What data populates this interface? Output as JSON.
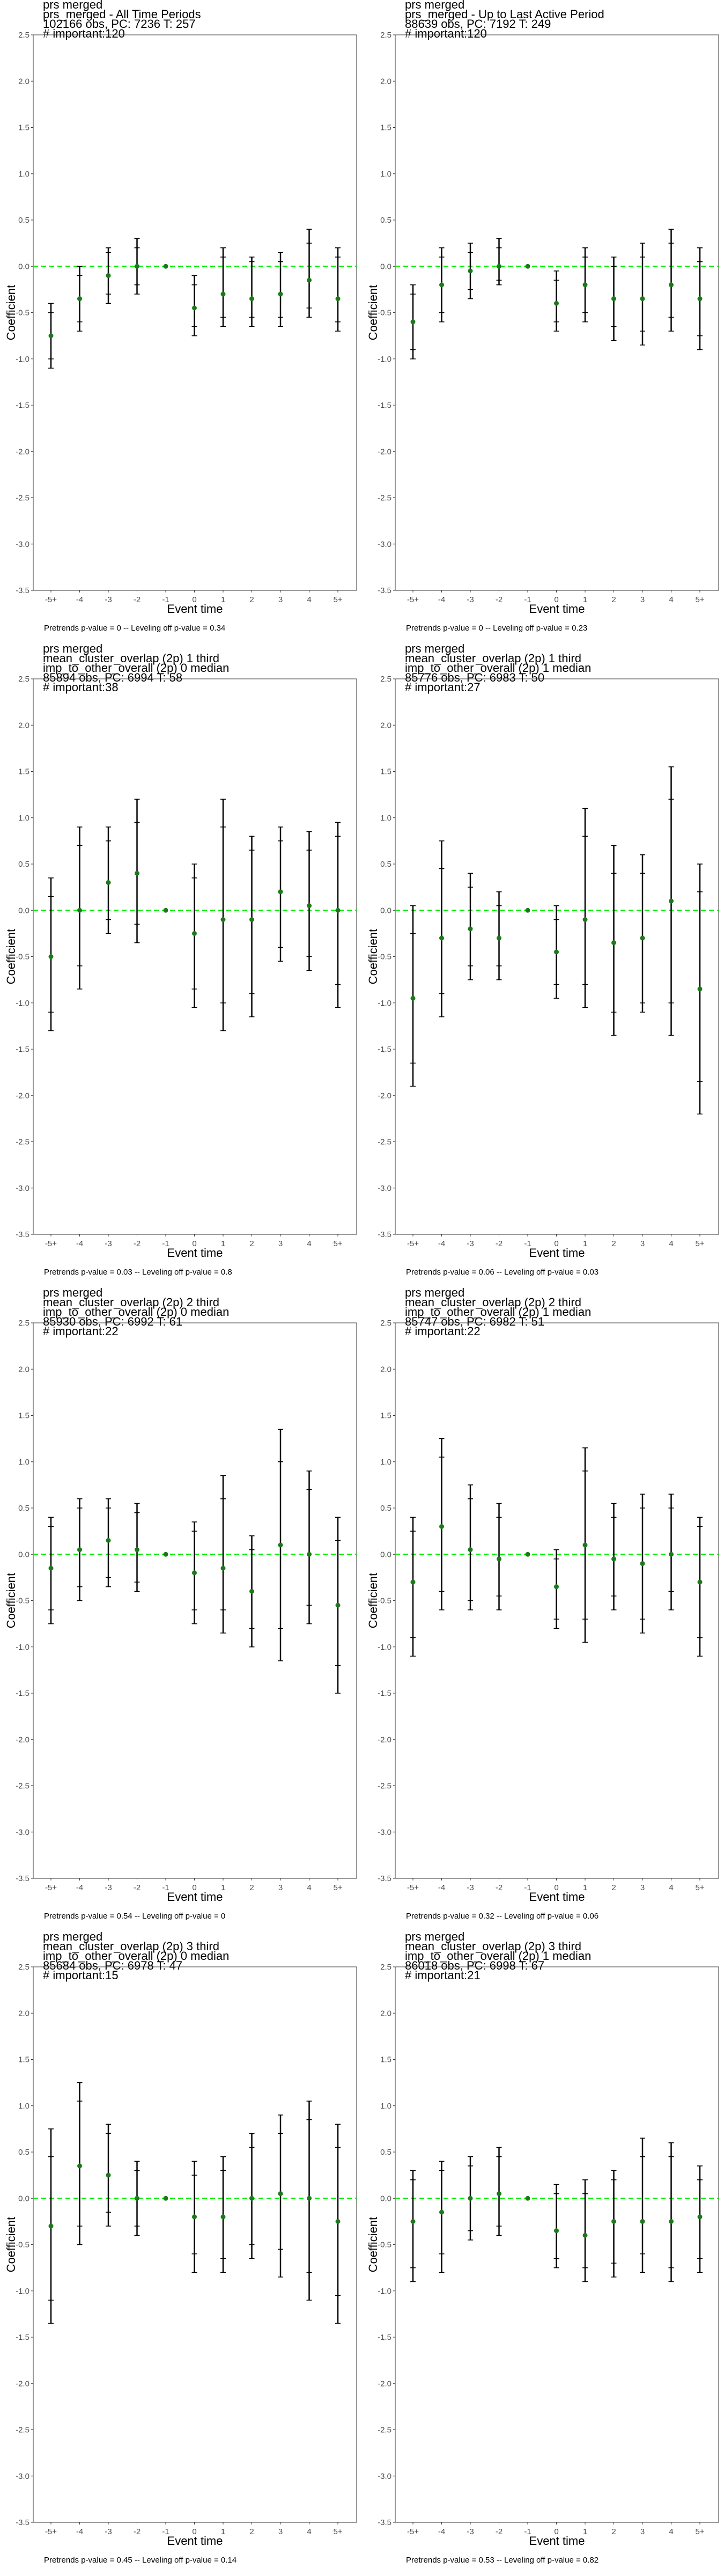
{
  "colors": {
    "point": "#1a7a1a",
    "zero_line": "#00ee00",
    "error_bar": "#000000",
    "frame": "#333333",
    "tick_text": "#4d4d4d"
  },
  "chart_data": [
    {
      "type": "scatter",
      "title_lines": [
        "prs merged",
        "prs_merged - All Time Periods",
        "102166 obs, PC: 7236 T: 257",
        "# important:120"
      ],
      "footnote": "Pretrends p-value = 0 -- Leveling off p-value = 0.34",
      "xlabel": "Event time",
      "ylabel": "Coefficient",
      "categories": [
        "-5+",
        "-4",
        "-3",
        "-2",
        "-1",
        "0",
        "1",
        "2",
        "3",
        "4",
        "5+"
      ],
      "ylim": [
        -3.5,
        2.5
      ],
      "yticks": [
        -3.5,
        -3.0,
        -2.5,
        -2.0,
        -1.5,
        -1.0,
        -0.5,
        0.0,
        0.5,
        1.0,
        1.5,
        2.0,
        2.5
      ],
      "y": [
        -0.75,
        -0.35,
        -0.1,
        0.0,
        0.0,
        -0.45,
        -0.3,
        -0.35,
        -0.3,
        -0.15,
        -0.35
      ],
      "ci95": [
        [
          -1.1,
          -0.4
        ],
        [
          -0.7,
          0.0
        ],
        [
          -0.4,
          0.2
        ],
        [
          -0.3,
          0.3
        ],
        [
          0.0,
          0.0
        ],
        [
          -0.75,
          -0.1
        ],
        [
          -0.65,
          0.2
        ],
        [
          -0.65,
          0.1
        ],
        [
          -0.65,
          0.15
        ],
        [
          -0.55,
          0.4
        ],
        [
          -0.7,
          0.2
        ]
      ],
      "ci90": [
        [
          -1.0,
          -0.5
        ],
        [
          -0.6,
          -0.1
        ],
        [
          -0.3,
          0.15
        ],
        [
          -0.2,
          0.2
        ],
        [
          0.0,
          0.0
        ],
        [
          -0.65,
          -0.2
        ],
        [
          -0.55,
          0.1
        ],
        [
          -0.55,
          0.05
        ],
        [
          -0.55,
          0.05
        ],
        [
          -0.45,
          0.25
        ],
        [
          -0.6,
          0.1
        ]
      ],
      "grid": false
    },
    {
      "type": "scatter",
      "title_lines": [
        "prs merged",
        "prs_merged - Up to Last Active Period",
        "88639 obs, PC: 7192 T: 249",
        "# important:120"
      ],
      "footnote": "Pretrends p-value = 0 -- Leveling off p-value = 0.23",
      "xlabel": "Event time",
      "ylabel": "Coefficient",
      "categories": [
        "-5+",
        "-4",
        "-3",
        "-2",
        "-1",
        "0",
        "1",
        "2",
        "3",
        "4",
        "5+"
      ],
      "ylim": [
        -3.5,
        2.5
      ],
      "yticks": [
        -3.5,
        -3.0,
        -2.5,
        -2.0,
        -1.5,
        -1.0,
        -0.5,
        0.0,
        0.5,
        1.0,
        1.5,
        2.0,
        2.5
      ],
      "y": [
        -0.6,
        -0.2,
        -0.05,
        0.0,
        0.0,
        -0.4,
        -0.2,
        -0.35,
        -0.35,
        -0.2,
        -0.35
      ],
      "ci95": [
        [
          -1.0,
          -0.2
        ],
        [
          -0.6,
          0.2
        ],
        [
          -0.35,
          0.25
        ],
        [
          -0.2,
          0.3
        ],
        [
          0.0,
          0.0
        ],
        [
          -0.7,
          -0.05
        ],
        [
          -0.6,
          0.2
        ],
        [
          -0.8,
          0.1
        ],
        [
          -0.85,
          0.25
        ],
        [
          -0.7,
          0.4
        ],
        [
          -0.9,
          0.2
        ]
      ],
      "ci90": [
        [
          -0.9,
          -0.3
        ],
        [
          -0.5,
          0.1
        ],
        [
          -0.25,
          0.15
        ],
        [
          -0.15,
          0.2
        ],
        [
          0.0,
          0.0
        ],
        [
          -0.6,
          -0.15
        ],
        [
          -0.5,
          0.1
        ],
        [
          -0.65,
          0.0
        ],
        [
          -0.7,
          0.1
        ],
        [
          -0.55,
          0.25
        ],
        [
          -0.75,
          0.05
        ]
      ],
      "grid": false
    },
    {
      "type": "scatter",
      "title_lines": [
        "prs merged",
        "mean_cluster_overlap (2p) 1 third",
        "imp_to_other_overall (2p) 0 median",
        "85894 obs, PC: 6994 T: 58",
        "# important:38"
      ],
      "footnote": "Pretrends p-value = 0.03 -- Leveling off p-value = 0.8",
      "xlabel": "Event time",
      "ylabel": "Coefficient",
      "categories": [
        "-5+",
        "-4",
        "-3",
        "-2",
        "-1",
        "0",
        "1",
        "2",
        "3",
        "4",
        "5+"
      ],
      "ylim": [
        -3.5,
        2.5
      ],
      "yticks": [
        -3.5,
        -3.0,
        -2.5,
        -2.0,
        -1.5,
        -1.0,
        -0.5,
        0.0,
        0.5,
        1.0,
        1.5,
        2.0,
        2.5
      ],
      "y": [
        -0.5,
        0.0,
        0.3,
        0.4,
        0.0,
        -0.25,
        -0.1,
        -0.1,
        0.2,
        0.05,
        0.0
      ],
      "ci95": [
        [
          -1.3,
          0.35
        ],
        [
          -0.85,
          0.9
        ],
        [
          -0.25,
          0.9
        ],
        [
          -0.35,
          1.2
        ],
        [
          0.0,
          0.0
        ],
        [
          -1.05,
          0.5
        ],
        [
          -1.3,
          1.2
        ],
        [
          -1.15,
          0.8
        ],
        [
          -0.55,
          0.9
        ],
        [
          -0.65,
          0.85
        ],
        [
          -1.05,
          0.95
        ]
      ],
      "ci90": [
        [
          -1.1,
          0.15
        ],
        [
          -0.6,
          0.7
        ],
        [
          -0.1,
          0.75
        ],
        [
          -0.15,
          0.95
        ],
        [
          0.0,
          0.0
        ],
        [
          -0.85,
          0.35
        ],
        [
          -1.0,
          0.9
        ],
        [
          -0.9,
          0.65
        ],
        [
          -0.4,
          0.75
        ],
        [
          -0.5,
          0.65
        ],
        [
          -0.8,
          0.8
        ]
      ],
      "grid": false
    },
    {
      "type": "scatter",
      "title_lines": [
        "prs merged",
        "mean_cluster_overlap (2p) 1 third",
        "imp_to_other_overall (2p) 1 median",
        "85776 obs, PC: 6983 T: 50",
        "# important:27"
      ],
      "footnote": "Pretrends p-value = 0.06 -- Leveling off p-value = 0.03",
      "xlabel": "Event time",
      "ylabel": "Coefficient",
      "categories": [
        "-5+",
        "-4",
        "-3",
        "-2",
        "-1",
        "0",
        "1",
        "2",
        "3",
        "4",
        "5+"
      ],
      "ylim": [
        -3.5,
        2.5
      ],
      "yticks": [
        -3.5,
        -3.0,
        -2.5,
        -2.0,
        -1.5,
        -1.0,
        -0.5,
        0.0,
        0.5,
        1.0,
        1.5,
        2.0,
        2.5
      ],
      "y": [
        -0.95,
        -0.3,
        -0.2,
        -0.3,
        0.0,
        -0.45,
        -0.1,
        -0.35,
        -0.3,
        0.1,
        -0.85
      ],
      "ci95": [
        [
          -1.9,
          0.05
        ],
        [
          -1.15,
          0.75
        ],
        [
          -0.75,
          0.4
        ],
        [
          -0.75,
          0.2
        ],
        [
          0.0,
          0.0
        ],
        [
          -0.95,
          0.05
        ],
        [
          -1.05,
          1.1
        ],
        [
          -1.35,
          0.7
        ],
        [
          -1.1,
          0.6
        ],
        [
          -1.35,
          1.55
        ],
        [
          -2.2,
          0.5
        ]
      ],
      "ci90": [
        [
          -1.65,
          -0.25
        ],
        [
          -0.9,
          0.45
        ],
        [
          -0.6,
          0.25
        ],
        [
          -0.6,
          0.05
        ],
        [
          0.0,
          0.0
        ],
        [
          -0.8,
          -0.1
        ],
        [
          -0.8,
          0.8
        ],
        [
          -1.1,
          0.4
        ],
        [
          -1.0,
          0.4
        ],
        [
          -1.0,
          1.2
        ],
        [
          -1.85,
          0.2
        ]
      ],
      "grid": false
    },
    {
      "type": "scatter",
      "title_lines": [
        "prs merged",
        "mean_cluster_overlap (2p) 2 third",
        "imp_to_other_overall (2p) 0 median",
        "85930 obs, PC: 6992 T: 61",
        "# important:22"
      ],
      "footnote": "Pretrends p-value = 0.54 -- Leveling off p-value = 0",
      "xlabel": "Event time",
      "ylabel": "Coefficient",
      "categories": [
        "-5+",
        "-4",
        "-3",
        "-2",
        "-1",
        "0",
        "1",
        "2",
        "3",
        "4",
        "5+"
      ],
      "ylim": [
        -3.5,
        2.5
      ],
      "yticks": [
        -3.5,
        -3.0,
        -2.5,
        -2.0,
        -1.5,
        -1.0,
        -0.5,
        0.0,
        0.5,
        1.0,
        1.5,
        2.0,
        2.5
      ],
      "y": [
        -0.15,
        0.05,
        0.15,
        0.05,
        0.0,
        -0.2,
        -0.15,
        -0.4,
        0.1,
        0.0,
        -0.55
      ],
      "ci95": [
        [
          -0.75,
          0.4
        ],
        [
          -0.5,
          0.6
        ],
        [
          -0.35,
          0.6
        ],
        [
          -0.4,
          0.55
        ],
        [
          0.0,
          0.0
        ],
        [
          -0.75,
          0.35
        ],
        [
          -0.85,
          0.85
        ],
        [
          -1.0,
          0.2
        ],
        [
          -1.15,
          1.35
        ],
        [
          -0.75,
          0.9
        ],
        [
          -1.5,
          0.4
        ]
      ],
      "ci90": [
        [
          -0.6,
          0.3
        ],
        [
          -0.35,
          0.5
        ],
        [
          -0.25,
          0.5
        ],
        [
          -0.3,
          0.45
        ],
        [
          0.0,
          0.0
        ],
        [
          -0.6,
          0.25
        ],
        [
          -0.6,
          0.6
        ],
        [
          -0.8,
          0.05
        ],
        [
          -0.8,
          1.0
        ],
        [
          -0.55,
          0.7
        ],
        [
          -1.2,
          0.15
        ]
      ],
      "grid": false
    },
    {
      "type": "scatter",
      "title_lines": [
        "prs merged",
        "mean_cluster_overlap (2p) 2 third",
        "imp_to_other_overall (2p) 1 median",
        "85747 obs, PC: 6982 T: 51",
        "# important:22"
      ],
      "footnote": "Pretrends p-value = 0.32 -- Leveling off p-value = 0.06",
      "xlabel": "Event time",
      "ylabel": "Coefficient",
      "categories": [
        "-5+",
        "-4",
        "-3",
        "-2",
        "-1",
        "0",
        "1",
        "2",
        "3",
        "4",
        "5+"
      ],
      "ylim": [
        -3.5,
        2.5
      ],
      "yticks": [
        -3.5,
        -3.0,
        -2.5,
        -2.0,
        -1.5,
        -1.0,
        -0.5,
        0.0,
        0.5,
        1.0,
        1.5,
        2.0,
        2.5
      ],
      "y": [
        -0.3,
        0.3,
        0.05,
        -0.05,
        0.0,
        -0.35,
        0.1,
        -0.05,
        -0.1,
        0.0,
        -0.3
      ],
      "ci95": [
        [
          -1.1,
          0.4
        ],
        [
          -0.6,
          1.25
        ],
        [
          -0.6,
          0.75
        ],
        [
          -0.6,
          0.55
        ],
        [
          0.0,
          0.0
        ],
        [
          -0.8,
          0.05
        ],
        [
          -0.95,
          1.15
        ],
        [
          -0.6,
          0.55
        ],
        [
          -0.85,
          0.65
        ],
        [
          -0.6,
          0.65
        ],
        [
          -1.1,
          0.4
        ]
      ],
      "ci90": [
        [
          -0.9,
          0.25
        ],
        [
          -0.4,
          1.05
        ],
        [
          -0.5,
          0.6
        ],
        [
          -0.45,
          0.4
        ],
        [
          0.0,
          0.0
        ],
        [
          -0.7,
          -0.05
        ],
        [
          -0.7,
          0.9
        ],
        [
          -0.45,
          0.4
        ],
        [
          -0.7,
          0.5
        ],
        [
          -0.4,
          0.5
        ],
        [
          -0.9,
          0.3
        ]
      ],
      "grid": false
    },
    {
      "type": "scatter",
      "title_lines": [
        "prs merged",
        "mean_cluster_overlap (2p) 3 third",
        "imp_to_other_overall (2p) 0 median",
        "85684 obs, PC: 6978 T: 47",
        "# important:15"
      ],
      "footnote": "Pretrends p-value = 0.45 -- Leveling off p-value = 0.14",
      "xlabel": "Event time",
      "ylabel": "Coefficient",
      "categories": [
        "-5+",
        "-4",
        "-3",
        "-2",
        "-1",
        "0",
        "1",
        "2",
        "3",
        "4",
        "5+"
      ],
      "ylim": [
        -3.5,
        2.5
      ],
      "yticks": [
        -3.5,
        -3.0,
        -2.5,
        -2.0,
        -1.5,
        -1.0,
        -0.5,
        0.0,
        0.5,
        1.0,
        1.5,
        2.0,
        2.5
      ],
      "y": [
        -0.3,
        0.35,
        0.25,
        0.0,
        0.0,
        -0.2,
        -0.2,
        0.0,
        0.05,
        0.0,
        -0.25
      ],
      "ci95": [
        [
          -1.35,
          0.75
        ],
        [
          -0.5,
          1.25
        ],
        [
          -0.3,
          0.8
        ],
        [
          -0.4,
          0.4
        ],
        [
          0.0,
          0.0
        ],
        [
          -0.8,
          0.4
        ],
        [
          -0.8,
          0.45
        ],
        [
          -0.65,
          0.7
        ],
        [
          -0.85,
          0.9
        ],
        [
          -1.1,
          1.05
        ],
        [
          -1.35,
          0.8
        ]
      ],
      "ci90": [
        [
          -1.1,
          0.45
        ],
        [
          -0.3,
          1.05
        ],
        [
          -0.15,
          0.7
        ],
        [
          -0.3,
          0.3
        ],
        [
          0.0,
          0.0
        ],
        [
          -0.6,
          0.25
        ],
        [
          -0.65,
          0.3
        ],
        [
          -0.5,
          0.55
        ],
        [
          -0.55,
          0.7
        ],
        [
          -0.8,
          0.85
        ],
        [
          -1.05,
          0.55
        ]
      ],
      "grid": false
    },
    {
      "type": "scatter",
      "title_lines": [
        "prs merged",
        "mean_cluster_overlap (2p) 3 third",
        "imp_to_other_overall (2p) 1 median",
        "86018 obs, PC: 6998 T: 67",
        "# important:21"
      ],
      "footnote": "Pretrends p-value = 0.53 -- Leveling off p-value = 0.82",
      "xlabel": "Event time",
      "ylabel": "Coefficient",
      "categories": [
        "-5+",
        "-4",
        "-3",
        "-2",
        "-1",
        "0",
        "1",
        "2",
        "3",
        "4",
        "5+"
      ],
      "ylim": [
        -3.5,
        2.5
      ],
      "yticks": [
        -3.5,
        -3.0,
        -2.5,
        -2.0,
        -1.5,
        -1.0,
        -0.5,
        0.0,
        0.5,
        1.0,
        1.5,
        2.0,
        2.5
      ],
      "y": [
        -0.25,
        -0.15,
        0.0,
        0.05,
        0.0,
        -0.35,
        -0.4,
        -0.25,
        -0.25,
        -0.25,
        -0.2
      ],
      "ci95": [
        [
          -0.9,
          0.3
        ],
        [
          -0.8,
          0.4
        ],
        [
          -0.45,
          0.45
        ],
        [
          -0.4,
          0.55
        ],
        [
          0.0,
          0.0
        ],
        [
          -0.75,
          0.15
        ],
        [
          -0.9,
          0.2
        ],
        [
          -0.85,
          0.3
        ],
        [
          -0.8,
          0.65
        ],
        [
          -0.9,
          0.6
        ],
        [
          -0.8,
          0.35
        ]
      ],
      "ci90": [
        [
          -0.75,
          0.2
        ],
        [
          -0.6,
          0.3
        ],
        [
          -0.35,
          0.35
        ],
        [
          -0.3,
          0.45
        ],
        [
          0.0,
          0.0
        ],
        [
          -0.65,
          0.05
        ],
        [
          -0.75,
          0.05
        ],
        [
          -0.7,
          0.2
        ],
        [
          -0.6,
          0.45
        ],
        [
          -0.75,
          0.45
        ],
        [
          -0.65,
          0.2
        ]
      ],
      "grid": false
    }
  ]
}
